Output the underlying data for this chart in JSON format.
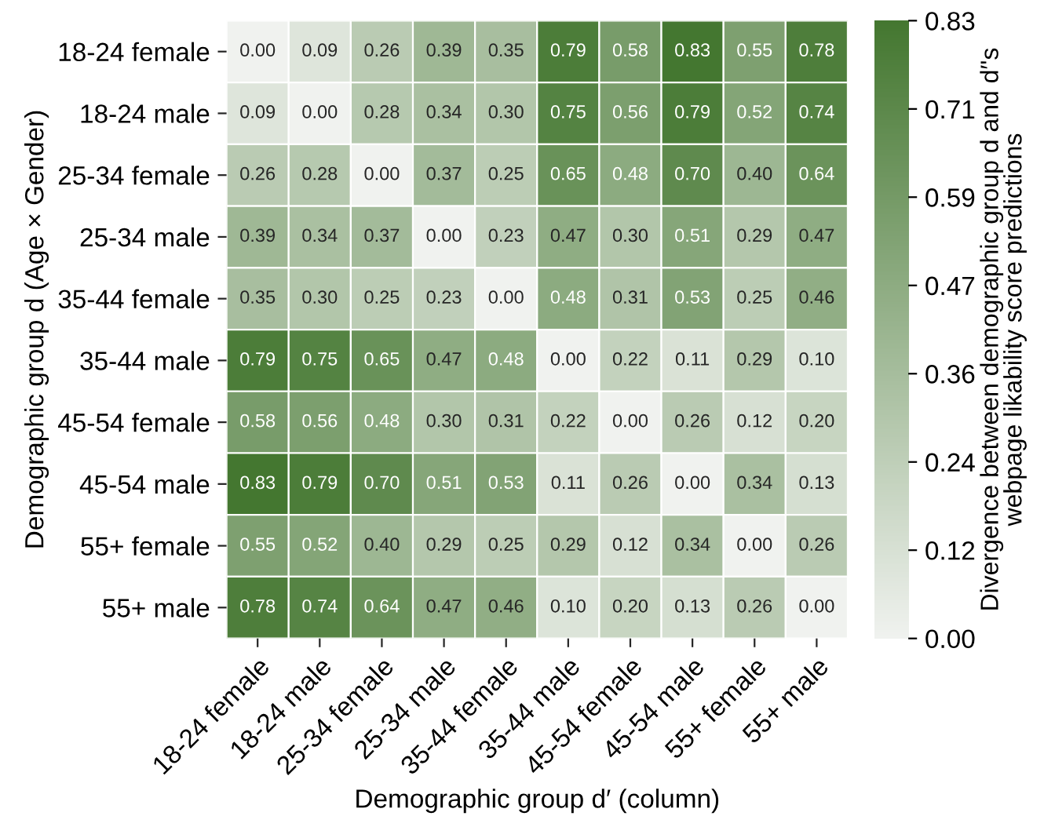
{
  "chart_data": {
    "type": "heatmap",
    "xlabel": "Demographic group d′ (column)",
    "ylabel": "Demographic group d (Age × Gender)",
    "clabel": "Divergence between demographic group d and d′'s\nwebpage likability score predictions",
    "categories": [
      "18-24 female",
      "18-24 male",
      "25-34 female",
      "25-34 male",
      "35-44 female",
      "35-44 male",
      "45-54 female",
      "45-54 male",
      "55+ female",
      "55+ male"
    ],
    "y_categories": [
      "18-24 female",
      "18-24 male",
      "25-34 female",
      "25-34 male",
      "35-44 female",
      "35-44 male",
      "45-54 female",
      "45-54 male",
      "55+ female",
      "55+ male"
    ],
    "cells": [
      [
        0.0,
        0.09,
        0.26,
        0.39,
        0.35,
        0.79,
        0.58,
        0.83,
        0.55,
        0.78
      ],
      [
        0.09,
        0.0,
        0.28,
        0.34,
        0.3,
        0.75,
        0.56,
        0.79,
        0.52,
        0.74
      ],
      [
        0.26,
        0.28,
        0.0,
        0.37,
        0.25,
        0.65,
        0.48,
        0.7,
        0.4,
        0.64
      ],
      [
        0.39,
        0.34,
        0.37,
        0.0,
        0.23,
        0.47,
        0.3,
        0.51,
        0.29,
        0.47
      ],
      [
        0.35,
        0.3,
        0.25,
        0.23,
        0.0,
        0.48,
        0.31,
        0.53,
        0.25,
        0.46
      ],
      [
        0.79,
        0.75,
        0.65,
        0.47,
        0.48,
        0.0,
        0.22,
        0.11,
        0.29,
        0.1
      ],
      [
        0.58,
        0.56,
        0.48,
        0.3,
        0.31,
        0.22,
        0.0,
        0.26,
        0.12,
        0.2
      ],
      [
        0.83,
        0.79,
        0.7,
        0.51,
        0.53,
        0.11,
        0.26,
        0.0,
        0.34,
        0.13
      ],
      [
        0.55,
        0.52,
        0.4,
        0.29,
        0.25,
        0.29,
        0.12,
        0.34,
        0.0,
        0.26
      ],
      [
        0.78,
        0.74,
        0.64,
        0.47,
        0.46,
        0.1,
        0.2,
        0.13,
        0.26,
        0.0
      ]
    ],
    "data_labels": true,
    "cell_labels": [
      [
        "0.00",
        "0.09",
        "0.26",
        "0.39",
        "0.35",
        "0.79",
        "0.58",
        "0.83",
        "0.55",
        "0.78"
      ],
      [
        "0.09",
        "0.00",
        "0.28",
        "0.34",
        "0.30",
        "0.75",
        "0.56",
        "0.79",
        "0.52",
        "0.74"
      ],
      [
        "0.26",
        "0.28",
        "0.00",
        "0.37",
        "0.25",
        "0.65",
        "0.48",
        "0.70",
        "0.40",
        "0.64"
      ],
      [
        "0.39",
        "0.34",
        "0.37",
        "0.00",
        "0.23",
        "0.47",
        "0.30",
        "0.51",
        "0.29",
        "0.47"
      ],
      [
        "0.35",
        "0.30",
        "0.25",
        "0.23",
        "0.00",
        "0.48",
        "0.31",
        "0.53",
        "0.25",
        "0.46"
      ],
      [
        "0.79",
        "0.75",
        "0.65",
        "0.47",
        "0.48",
        "0.00",
        "0.22",
        "0.11",
        "0.29",
        "0.10"
      ],
      [
        "0.58",
        "0.56",
        "0.48",
        "0.30",
        "0.31",
        "0.22",
        "0.00",
        "0.26",
        "0.12",
        "0.20"
      ],
      [
        "0.83",
        "0.79",
        "0.70",
        "0.51",
        "0.53",
        "0.11",
        "0.26",
        "0.00",
        "0.34",
        "0.13"
      ],
      [
        "0.55",
        "0.52",
        "0.40",
        "0.29",
        "0.25",
        "0.29",
        "0.12",
        "0.34",
        "0.00",
        "0.26"
      ],
      [
        "0.78",
        "0.74",
        "0.64",
        "0.47",
        "0.46",
        "0.10",
        "0.20",
        "0.13",
        "0.26",
        "0.00"
      ]
    ],
    "colors": [
      "#f0f2ef",
      "#447730"
    ],
    "clim": [
      0.0,
      0.83
    ],
    "cticks": [
      {
        "value": 0.0,
        "label": "0.00"
      },
      {
        "value": 0.1186,
        "label": "0.12"
      },
      {
        "value": 0.2371,
        "label": "0.24"
      },
      {
        "value": 0.3557,
        "label": "0.36"
      },
      {
        "value": 0.4743,
        "label": "0.47"
      },
      {
        "value": 0.5929,
        "label": "0.59"
      },
      {
        "value": 0.7114,
        "label": "0.71"
      },
      {
        "value": 0.83,
        "label": "0.83"
      }
    ]
  }
}
